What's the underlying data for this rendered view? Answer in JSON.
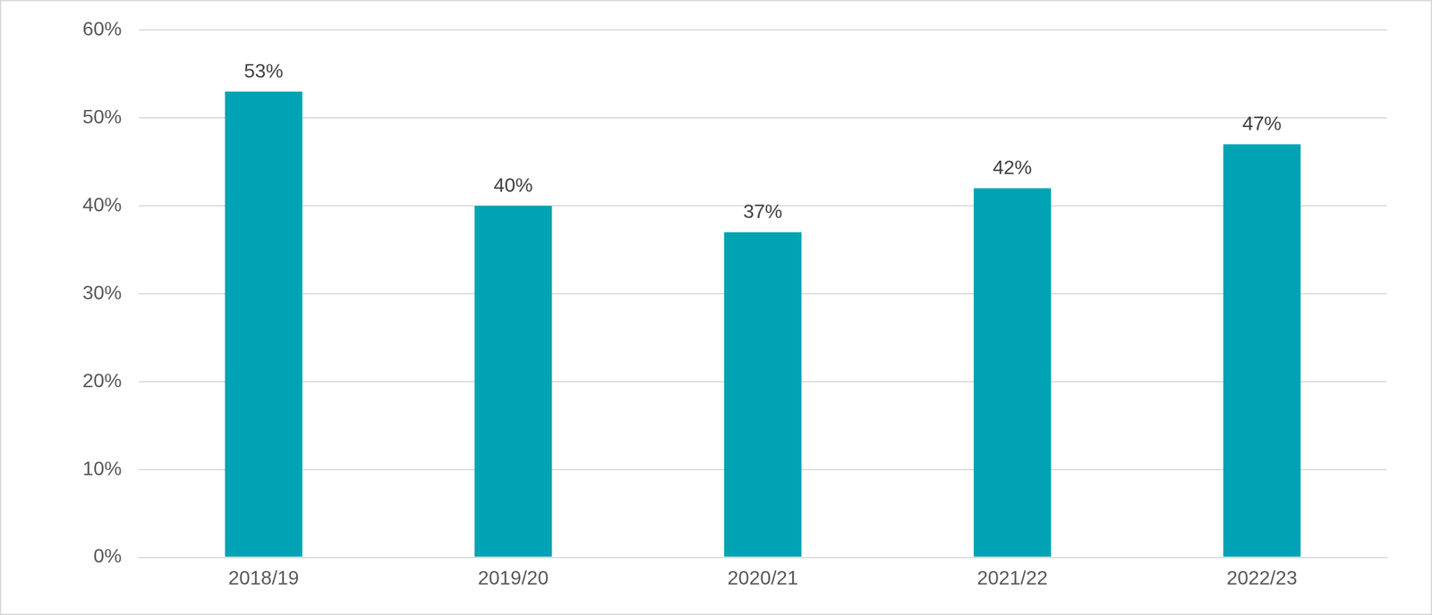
{
  "chart_data": {
    "type": "bar",
    "categories": [
      "2018/19",
      "2019/20",
      "2020/21",
      "2021/22",
      "2022/23"
    ],
    "values": [
      53,
      40,
      37,
      42,
      47
    ],
    "value_labels": [
      "53%",
      "40%",
      "37%",
      "42%",
      "47%"
    ],
    "color": "#00a3b4",
    "ylim": [
      0,
      60
    ],
    "yticks": [
      {
        "value": 0,
        "label": "0%"
      },
      {
        "value": 10,
        "label": "10%"
      },
      {
        "value": 20,
        "label": "20%"
      },
      {
        "value": 30,
        "label": "30%"
      },
      {
        "value": 40,
        "label": "40%"
      },
      {
        "value": 50,
        "label": "50%"
      },
      {
        "value": 60,
        "label": "60%"
      }
    ],
    "grid": true,
    "data_labels": true
  }
}
